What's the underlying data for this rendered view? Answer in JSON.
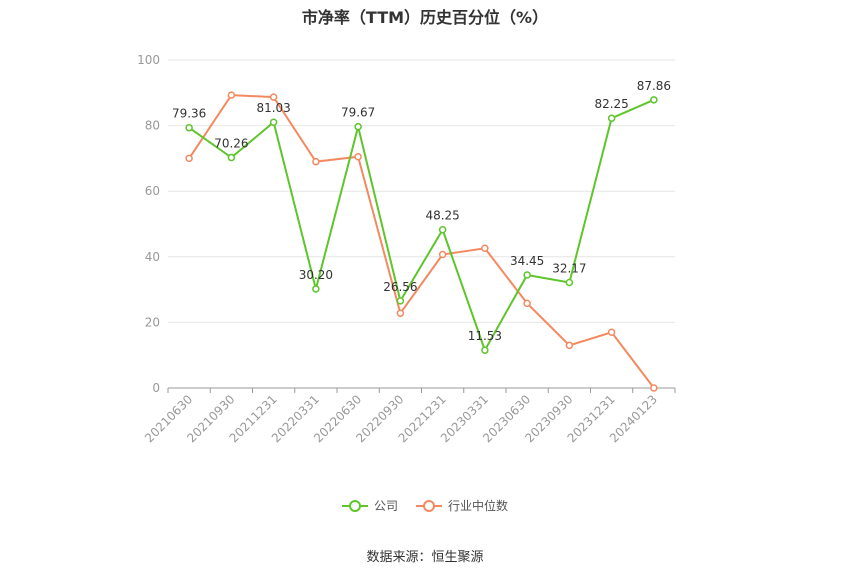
{
  "title": "市净率（TTM）历史百分位（%）",
  "source": "数据来源：恒生聚源",
  "chart_data": {
    "type": "line",
    "title": "市净率（TTM）历史百分位（%）",
    "categories": [
      "20210630",
      "20210930",
      "20211231",
      "20220331",
      "20220630",
      "20220930",
      "20221231",
      "20230331",
      "20230630",
      "20230930",
      "20231231",
      "20240123"
    ],
    "series": [
      {
        "name": "公司",
        "color": "#5ec52b",
        "values": [
          79.36,
          70.26,
          81.03,
          30.2,
          79.67,
          26.56,
          48.25,
          11.53,
          34.45,
          32.17,
          82.25,
          87.86
        ],
        "labels": [
          "79.36",
          "70.26",
          "81.03",
          "30.20",
          "79.67",
          "26.56",
          "48.25",
          "11.53",
          "34.45",
          "32.17",
          "82.25",
          "87.86"
        ]
      },
      {
        "name": "行业中位数",
        "color": "#f4895f",
        "values": [
          70.0,
          89.3,
          88.7,
          69.0,
          70.5,
          22.8,
          40.7,
          42.6,
          25.8,
          13.0,
          17.0,
          0.0
        ]
      }
    ],
    "ylim": [
      0,
      100
    ],
    "yticks": [
      0,
      20,
      40,
      60,
      80,
      100
    ],
    "grid": true,
    "legend_position": "bottom"
  }
}
